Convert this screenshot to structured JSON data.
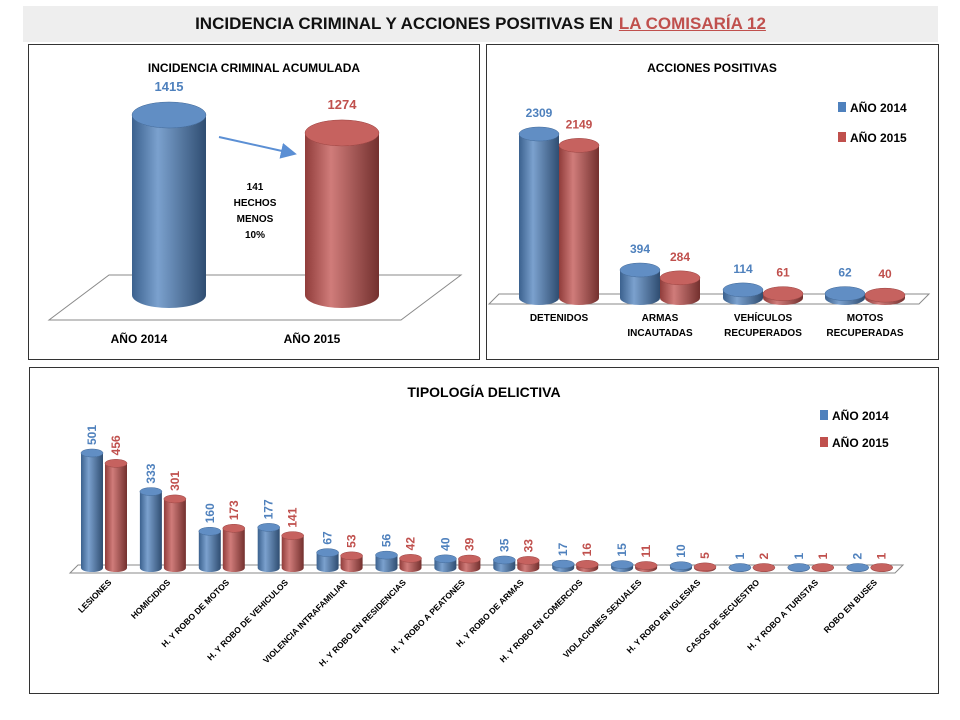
{
  "header": {
    "title_main": "INCIDENCIA CRIMINAL Y ACCIONES POSITIVAS EN",
    "title_link": "LA COMISARÍA 12"
  },
  "colors": {
    "y2014": "#4f81bd",
    "y2015": "#c0504d",
    "arrow": "#5b8fd4"
  },
  "chart_data": [
    {
      "type": "bar",
      "title": "INCIDENCIA CRIMINAL ACUMULADA",
      "categories": [
        "AÑO 2014",
        "AÑO 2015"
      ],
      "values": [
        1415,
        1274
      ],
      "annotation": [
        "141",
        "HECHOS",
        "MENOS",
        "10%"
      ]
    },
    {
      "type": "bar",
      "title": "ACCIONES POSITIVAS",
      "categories": [
        [
          "DETENIDOS"
        ],
        [
          "ARMAS",
          "INCAUTADAS"
        ],
        [
          "VEHÍCULOS",
          "RECUPERADOS"
        ],
        [
          "MOTOS",
          "RECUPERADAS"
        ]
      ],
      "series": [
        {
          "name": "AÑO 2014",
          "values": [
            2309,
            394,
            114,
            62
          ]
        },
        {
          "name": "AÑO 2015",
          "values": [
            2149,
            284,
            61,
            40
          ]
        }
      ],
      "legend": "top-right"
    },
    {
      "type": "bar",
      "title": "TIPOLOGÍA DELICTIVA",
      "categories": [
        "LESIONES",
        "HOMICIDIOS",
        "H. Y ROBO DE MOTOS",
        "H. Y ROBO DE VEHICULOS",
        "VIOLENCIA INTRAFAMILIAR",
        "H. Y ROBO EN RESIDENCIAS",
        "H. Y ROBO A PEATONES",
        "H. Y ROBO DE ARMAS",
        "H. Y ROBO EN COMERCIOS",
        "VIOLACIONES SEXUALES",
        "H. Y ROBO EN IGLESIAS",
        "CASOS DE SECUESTRO",
        "H. Y ROBO A TURISTAS",
        "ROBO EN BUSES"
      ],
      "series": [
        {
          "name": "AÑO 2014",
          "values": [
            501,
            333,
            160,
            177,
            67,
            56,
            40,
            35,
            17,
            15,
            10,
            1,
            1,
            2
          ]
        },
        {
          "name": "AÑO 2015",
          "values": [
            456,
            301,
            173,
            141,
            53,
            42,
            39,
            33,
            16,
            11,
            5,
            2,
            1,
            1
          ]
        }
      ],
      "legend": "top-right"
    }
  ]
}
